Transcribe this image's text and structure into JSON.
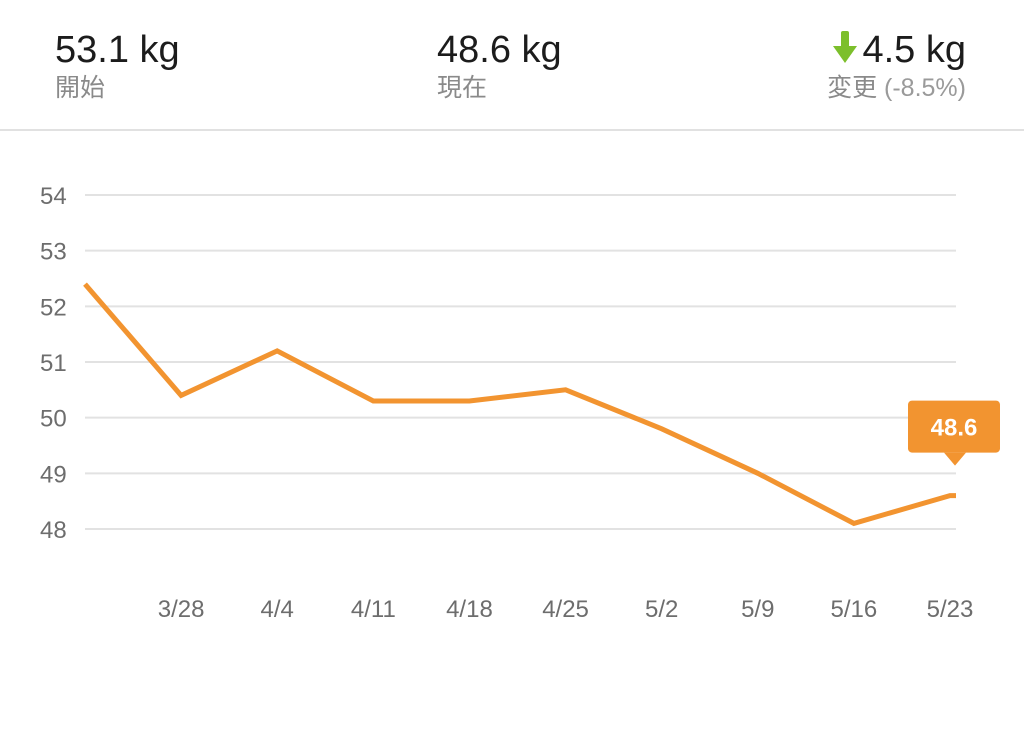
{
  "summary": {
    "start": {
      "value": "53.1 kg",
      "label": "開始"
    },
    "current": {
      "value": "48.6 kg",
      "label": "現在"
    },
    "change": {
      "icon": "arrow-down-icon",
      "value": "4.5 kg",
      "label": "変更",
      "percent": "(-8.5%)"
    }
  },
  "colors": {
    "line": "#f29430",
    "grid": "#e2e2e2",
    "arrow": "#7cbf2b"
  },
  "chart_data": {
    "type": "line",
    "title": "",
    "xlabel": "",
    "ylabel": "",
    "x_ticks": [
      "3/28",
      "4/4",
      "4/11",
      "4/18",
      "4/25",
      "5/2",
      "5/9",
      "5/16",
      "5/23"
    ],
    "y_ticks": [
      54,
      53,
      52,
      51,
      50,
      49,
      48
    ],
    "ylim": [
      48,
      54
    ],
    "grid": true,
    "series": [
      {
        "values": [
          {
            "x": "2023-03-21",
            "y": 52.4
          },
          {
            "x": "2023-03-28",
            "y": 50.4
          },
          {
            "x": "2023-04-04",
            "y": 51.2
          },
          {
            "x": "2023-04-11",
            "y": 50.3
          },
          {
            "x": "2023-04-18",
            "y": 50.3
          },
          {
            "x": "2023-04-25",
            "y": 50.5
          },
          {
            "x": "2023-05-02",
            "y": 49.8
          },
          {
            "x": "2023-05-09",
            "y": 49.0
          },
          {
            "x": "2023-05-16",
            "y": 48.1
          },
          {
            "x": "2023-05-23",
            "y": 48.6
          }
        ]
      }
    ],
    "tooltip": {
      "label": "48.6"
    }
  }
}
